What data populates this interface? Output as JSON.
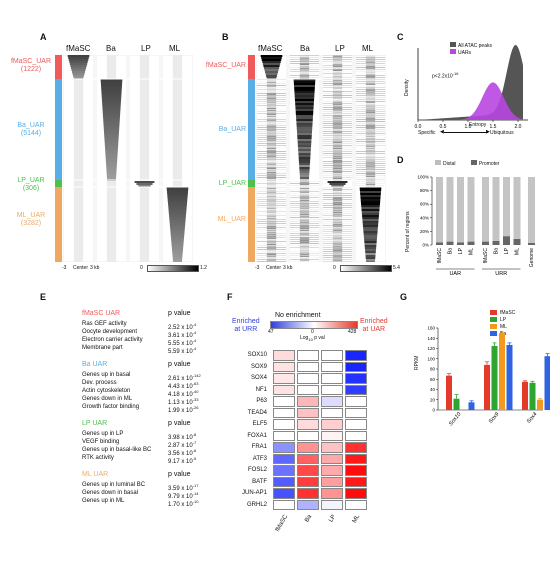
{
  "panels": {
    "A": "A",
    "B": "B",
    "C": "C",
    "D": "D",
    "E": "E",
    "F": "F",
    "G": "G"
  },
  "heatmap_cols": [
    "fMaSC",
    "Ba",
    "LP",
    "ML"
  ],
  "panelA": {
    "groups": [
      {
        "name": "fMaSC_UAR",
        "count": "(1222)",
        "color": "#ef5a5a"
      },
      {
        "name": "Ba_UAR",
        "count": "(5144)",
        "color": "#5aaee8"
      },
      {
        "name": "LP_UAR",
        "count": "(306)",
        "color": "#4cc24c"
      },
      {
        "name": "ML_UAR",
        "count": "(3282)",
        "color": "#f0a860"
      }
    ],
    "axis_left": "-3",
    "axis_center": "Center",
    "axis_right": "3 kb",
    "scale_min": "0",
    "scale_max": "1.2"
  },
  "panelB": {
    "groups": [
      "fMaSC_UAR",
      "Ba_UAR",
      "LP_UAR",
      "ML_UAR"
    ],
    "axis_left": "-3",
    "axis_center": "Center",
    "axis_right": "3 kb",
    "scale_min": "0",
    "scale_max": "5.4"
  },
  "panelC": {
    "legend": [
      "All ATAC peaks",
      "UARs"
    ],
    "pval": "p<2.2x10",
    "pval_exp": "-16",
    "ylabel": "Density",
    "xlabel": "Entropy",
    "xticks": [
      "0.0",
      "0.5",
      "1.0",
      "1.5",
      "2.0"
    ],
    "left_word": "Specific",
    "right_word": "Ubiquitous",
    "colors": {
      "all": "#555555",
      "uar": "#b847e0"
    }
  },
  "panelD": {
    "legend": [
      "Distal",
      "Promoter"
    ],
    "ylabel": "Percent of regions",
    "yticks": [
      "0%",
      "20%",
      "40%",
      "60%",
      "80%",
      "100%"
    ],
    "groups": [
      "UAR",
      "URR"
    ],
    "bar_labels": [
      "fMaSC",
      "Ba",
      "LP",
      "ML",
      "fMaSC",
      "Ba",
      "LP",
      "ML",
      "Genome"
    ]
  },
  "chart_data": [
    {
      "type": "bar",
      "title": "",
      "ylabel": "Percent of regions",
      "ylim": [
        0,
        100
      ],
      "categories": [
        "fMaSC",
        "Ba",
        "LP",
        "ML",
        "fMaSC",
        "Ba",
        "LP",
        "ML",
        "Genome"
      ],
      "series": [
        {
          "name": "Promoter",
          "values": [
            4,
            5,
            4,
            5,
            5,
            6,
            13,
            9,
            3
          ]
        },
        {
          "name": "Distal",
          "values": [
            96,
            95,
            96,
            95,
            95,
            94,
            87,
            91,
            97
          ]
        }
      ]
    },
    {
      "type": "bar",
      "title": "",
      "ylabel": "RPKM",
      "ylim": [
        0,
        160
      ],
      "categories": [
        "Sox10",
        "Sox9",
        "Sox4"
      ],
      "series": [
        {
          "name": "fMaSC",
          "values": [
            67,
            88,
            55
          ]
        },
        {
          "name": "LP",
          "values": [
            22,
            125,
            53
          ]
        },
        {
          "name": "ML",
          "values": [
            0,
            150,
            20
          ]
        },
        {
          "name": "Ba",
          "values": [
            15,
            127,
            105
          ]
        }
      ],
      "errors": [
        [
          4,
          6,
          2
        ],
        [
          8,
          6,
          3
        ],
        [
          0,
          2,
          2
        ],
        [
          3,
          4,
          5
        ]
      ],
      "yticks": [
        "0",
        "20",
        "40",
        "60",
        "80",
        "100",
        "120",
        "140",
        "160"
      ]
    }
  ],
  "panelE": {
    "sections": [
      {
        "title": "fMaSC UAR",
        "color": "#ef5a5a",
        "header": "p value",
        "rows": [
          [
            "Ras GEF activity",
            "2.52 x 10",
            "-4"
          ],
          [
            "Oocyte development",
            "3.61 x 10",
            "-4"
          ],
          [
            "Electron carrier activity",
            "5.55 x 10",
            "-4"
          ],
          [
            "Membrane part",
            "5.59 x 10",
            "-4"
          ]
        ]
      },
      {
        "title": "Ba UAR",
        "color": "#5aaee8",
        "header": "p value",
        "rows": [
          [
            "Genes up in basal",
            "2.61 x 10",
            "-142"
          ],
          [
            "Dev. process",
            "4.43 x 10",
            "-63"
          ],
          [
            "Actin cytoskeleton",
            "4.18 x 10",
            "-40"
          ],
          [
            "Genes down in ML",
            "1.13 x 10",
            "-33"
          ],
          [
            "Growth factor binding",
            "1.99 x 10",
            "-26"
          ]
        ]
      },
      {
        "title": "LP UAR",
        "color": "#4cc24c",
        "header": "p value",
        "rows": [
          [
            "Genes up in LP",
            "3.98 x 10",
            "-8"
          ],
          [
            "VEGF binding",
            "2.87 x 10",
            "-7"
          ],
          [
            "Genes up in basal-like BC",
            "3.56 x 10",
            "-6"
          ],
          [
            "RTK activity",
            "9.17 x 10",
            "-5"
          ]
        ]
      },
      {
        "title": "ML UAR",
        "color": "#f0a860",
        "header": "p value",
        "rows": [
          [
            "Genes up in luminal BC",
            "3.59 x 10",
            "-17"
          ],
          [
            "Genes down in basal",
            "9.79 x 10",
            "-14"
          ],
          [
            "Genes up in ML",
            "1.70 x 10",
            "-10"
          ]
        ]
      }
    ]
  },
  "panelF": {
    "left_label": [
      "Enriched",
      "at URR"
    ],
    "right_label": [
      "Enriched",
      "at UAR"
    ],
    "center_label": "No enrichment",
    "scale_left": "47",
    "scale_mid": "0",
    "scale_right": "428",
    "scale_caption": "Log",
    "scale_caption2": "p val",
    "cols": [
      "fMaSC",
      "Ba",
      "LP",
      "ML"
    ],
    "tfs": [
      "SOX10",
      "SOX9",
      "SOX4",
      "NF1",
      "P63",
      "TEAD4",
      "ELF5",
      "FOXA1",
      "FRA1",
      "ATF3",
      "FOSL2",
      "BATF",
      "JUN-AP1",
      "GRHL2"
    ],
    "values": [
      [
        0.15,
        0,
        0,
        -1
      ],
      [
        0.12,
        0,
        0,
        -1
      ],
      [
        0.1,
        0,
        0,
        -0.95
      ],
      [
        0.12,
        0,
        0,
        -0.9
      ],
      [
        0,
        0.3,
        -0.15,
        0
      ],
      [
        0,
        0.25,
        0,
        0
      ],
      [
        0,
        0.15,
        0.2,
        0
      ],
      [
        0,
        0,
        0.05,
        0
      ],
      [
        -0.5,
        0.45,
        0.25,
        0.85
      ],
      [
        -0.7,
        0.65,
        0.35,
        0.95
      ],
      [
        -0.65,
        0.75,
        0.35,
        1.0
      ],
      [
        -0.75,
        0.8,
        0.4,
        0.95
      ],
      [
        -0.8,
        0.85,
        0.45,
        1.0
      ],
      [
        0,
        -0.35,
        -0.05,
        0
      ]
    ]
  },
  "panelG": {
    "legend": [
      {
        "name": "fMaSC",
        "color": "#e43a2a"
      },
      {
        "name": "LP",
        "color": "#2ea52e"
      },
      {
        "name": "ML",
        "color": "#f39a1e"
      },
      {
        "name": "Ba",
        "color": "#2f63e0"
      }
    ],
    "ylabel": "RPKM",
    "genes": [
      "Sox10",
      "Sox9",
      "Sox4"
    ]
  }
}
